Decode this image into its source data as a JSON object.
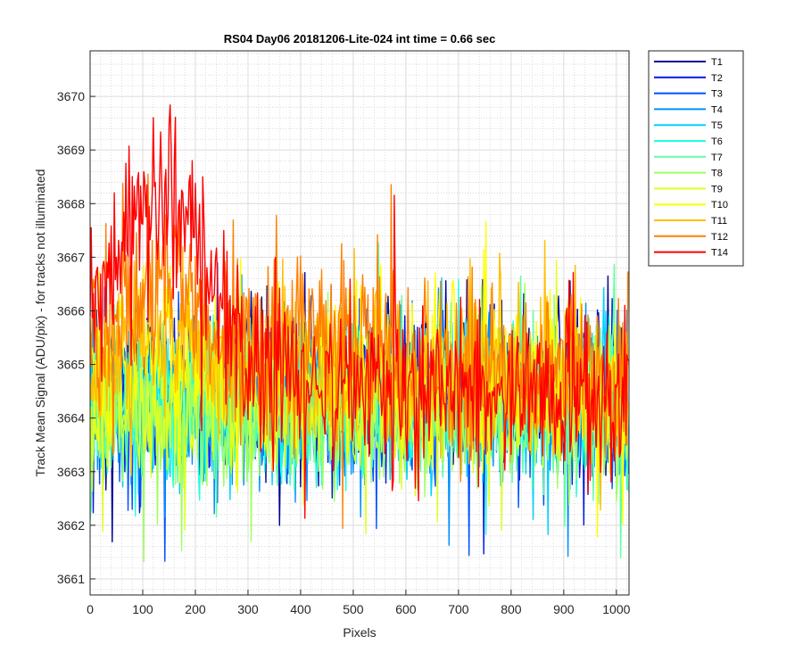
{
  "chart_data": {
    "type": "line",
    "title": "RS04 Day06 20181206-Lite-024 int time = 0.66 sec",
    "xlabel": "Pixels",
    "ylabel": "Track Mean Signal (ADU/pix) - for tracks not illuminated",
    "xlim": [
      0,
      1024
    ],
    "ylim": [
      3660.7,
      3670.85
    ],
    "xticks": [
      0,
      100,
      200,
      300,
      400,
      500,
      600,
      700,
      800,
      900,
      1000
    ],
    "yticks": [
      3661,
      3662,
      3663,
      3664,
      3665,
      3666,
      3667,
      3668,
      3669,
      3670
    ],
    "grid": "on (major and minor)",
    "legend_position": "outside-right-top",
    "series": [
      {
        "name": "T1",
        "color": "#00008f",
        "centers": [
          [
            0,
            3664.5
          ],
          [
            1024,
            3664.5
          ]
        ],
        "amplitude": 1.1
      },
      {
        "name": "T2",
        "color": "#0018e0",
        "centers": [
          [
            0,
            3664.4
          ],
          [
            1024,
            3664.4
          ]
        ],
        "amplitude": 1.1
      },
      {
        "name": "T3",
        "color": "#0050ff",
        "centers": [
          [
            0,
            3664.3
          ],
          [
            1024,
            3664.3
          ]
        ],
        "amplitude": 1.1
      },
      {
        "name": "T4",
        "color": "#0090ff",
        "centers": [
          [
            0,
            3664.3
          ],
          [
            1024,
            3664.3
          ]
        ],
        "amplitude": 1.1
      },
      {
        "name": "T5",
        "color": "#00d0ff",
        "centers": [
          [
            0,
            3664.2
          ],
          [
            1024,
            3664.3
          ]
        ],
        "amplitude": 1.1
      },
      {
        "name": "T6",
        "color": "#20ffdf",
        "centers": [
          [
            0,
            3664.2
          ],
          [
            1024,
            3664.3
          ]
        ],
        "amplitude": 1.1
      },
      {
        "name": "T7",
        "color": "#60ffa0",
        "centers": [
          [
            0,
            3664.2
          ],
          [
            1024,
            3664.3
          ]
        ],
        "amplitude": 1.1
      },
      {
        "name": "T8",
        "color": "#a0ff60",
        "centers": [
          [
            0,
            3664.1
          ],
          [
            1024,
            3664.2
          ]
        ],
        "amplitude": 1.1
      },
      {
        "name": "T9",
        "color": "#dfff20",
        "centers": [
          [
            0,
            3664.2
          ],
          [
            1024,
            3664.4
          ]
        ],
        "amplitude": 1.1
      },
      {
        "name": "T10",
        "color": "#ffff00",
        "centers": [
          [
            0,
            3664.8
          ],
          [
            150,
            3665.5
          ],
          [
            250,
            3664.9
          ],
          [
            1024,
            3664.5
          ]
        ],
        "amplitude": 1.1
      },
      {
        "name": "T11",
        "color": "#ffbf00",
        "centers": [
          [
            0,
            3665.0
          ],
          [
            150,
            3665.6
          ],
          [
            250,
            3665.0
          ],
          [
            1024,
            3664.6
          ]
        ],
        "amplitude": 1.1
      },
      {
        "name": "T12",
        "color": "#ff8000",
        "centers": [
          [
            0,
            3665.3
          ],
          [
            150,
            3666.8
          ],
          [
            250,
            3665.6
          ],
          [
            1024,
            3664.7
          ]
        ],
        "amplitude": 1.2
      },
      {
        "name": "T14",
        "color": "#ff0000",
        "centers": [
          [
            0,
            3666.0
          ],
          [
            100,
            3667.8
          ],
          [
            150,
            3668.3
          ],
          [
            200,
            3667.6
          ],
          [
            260,
            3665.8
          ],
          [
            320,
            3664.8
          ],
          [
            1024,
            3664.2
          ]
        ],
        "amplitude": 1.2
      }
    ]
  }
}
